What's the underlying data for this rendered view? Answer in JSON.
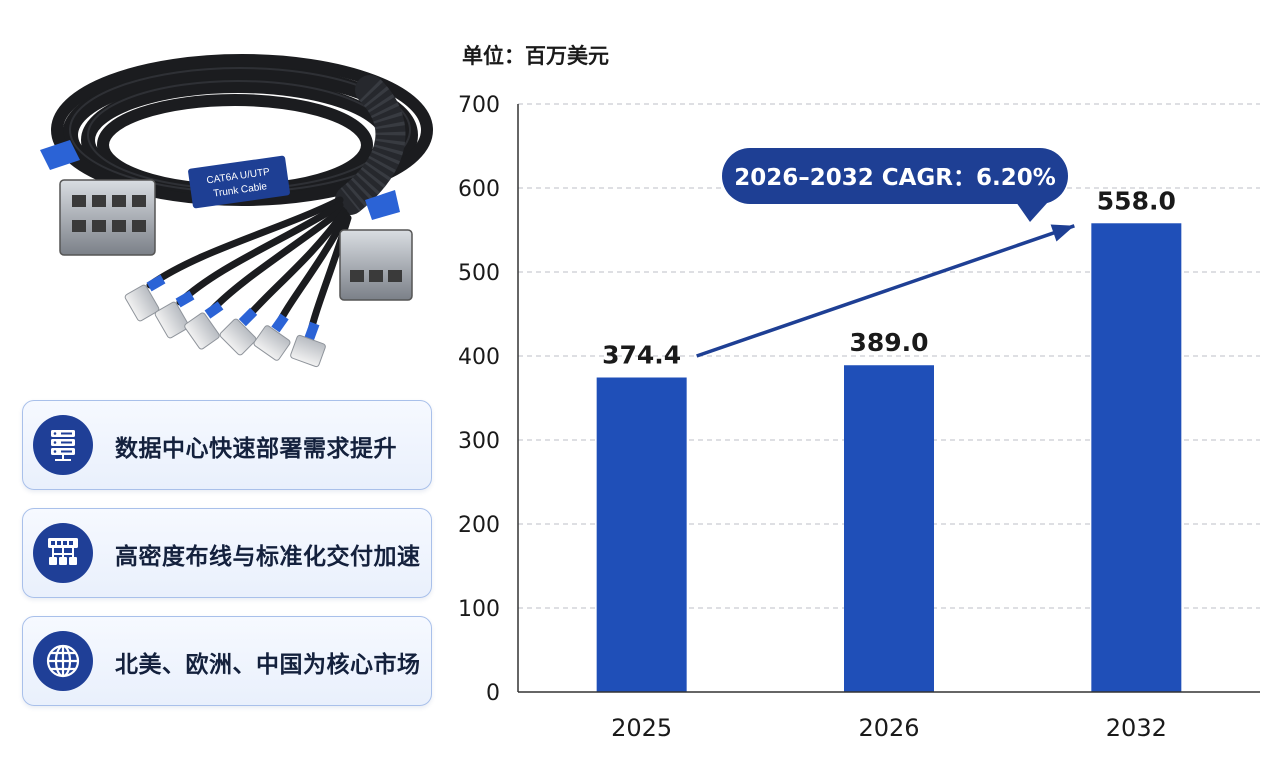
{
  "product_image": {
    "label_line1": "CAT6A U/UTP",
    "label_line2": "Trunk Cable"
  },
  "features": [
    {
      "icon": "server-icon",
      "text": "数据中心快速部署需求提升"
    },
    {
      "icon": "network-icon",
      "text": "高密度布线与标准化交付加速"
    },
    {
      "icon": "globe-icon",
      "text": "北美、欧洲、中国为核心市场"
    }
  ],
  "chart_data": {
    "type": "bar",
    "unit_label": "单位：百万美元",
    "categories": [
      "2025",
      "2026",
      "2032"
    ],
    "values": [
      374.4,
      389.0,
      558.0
    ],
    "value_labels": [
      "374.4",
      "389.0",
      "558.0"
    ],
    "ylim": [
      0,
      700
    ],
    "yticks": [
      0,
      100,
      200,
      300,
      400,
      500,
      600,
      700
    ],
    "grid": true,
    "annotation": "2026–2032 CAGR：6.20%",
    "colors": {
      "bar": "#1f4fb8",
      "annotation_bg": "#1e3f94",
      "arrow": "#1e3f94"
    }
  }
}
